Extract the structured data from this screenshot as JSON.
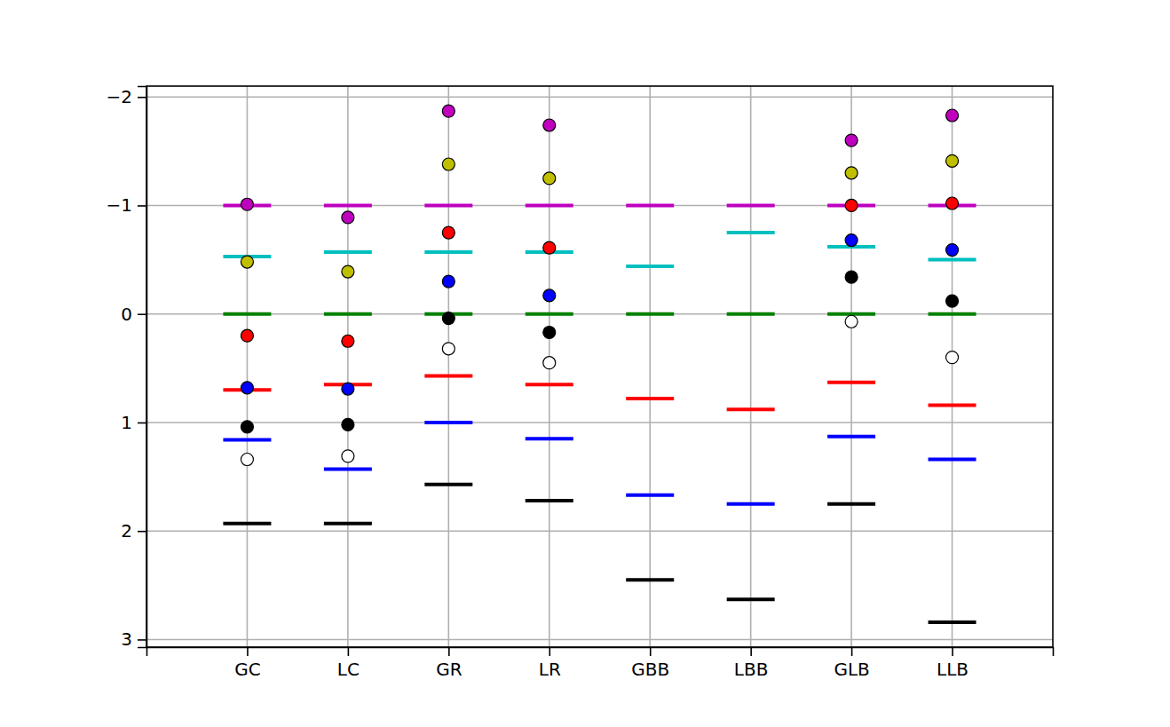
{
  "chart_data": {
    "type": "scatter",
    "categories": [
      "GC",
      "LC",
      "GR",
      "LR",
      "GBB",
      "LBB",
      "GLB",
      "LLB"
    ],
    "series": [
      {
        "color": "#bf00bf",
        "marker": "hline",
        "values": [
          -1,
          -1,
          -1,
          -1,
          -1,
          -1,
          -1,
          -1
        ]
      },
      {
        "color": "#00bfbf",
        "marker": "hline",
        "values": [
          -0.53,
          -0.57,
          -0.57,
          -0.57,
          -0.44,
          -0.75,
          -0.62,
          -0.5
        ]
      },
      {
        "color": "#008000",
        "marker": "hline",
        "values": [
          0,
          0,
          0,
          0,
          0,
          0,
          0,
          0
        ]
      },
      {
        "color": "#ff0000",
        "marker": "hline",
        "values": [
          0.7,
          0.65,
          0.57,
          0.65,
          0.78,
          0.88,
          0.63,
          0.84
        ]
      },
      {
        "color": "#0000ff",
        "marker": "hline",
        "values": [
          1.16,
          1.43,
          1.0,
          1.15,
          1.67,
          1.75,
          1.13,
          1.34
        ]
      },
      {
        "color": "#000000",
        "marker": "hline",
        "values": [
          1.93,
          1.93,
          1.57,
          1.72,
          2.45,
          2.63,
          1.75,
          2.84
        ]
      },
      {
        "color": "#bf00bf",
        "marker": "circle",
        "values": [
          -1.01,
          -0.89,
          -1.87,
          -1.74,
          null,
          null,
          -1.6,
          -1.83
        ]
      },
      {
        "color": "#bfbf00",
        "marker": "circle",
        "values": [
          -0.48,
          -0.39,
          -1.38,
          -1.25,
          null,
          null,
          -1.3,
          -1.41
        ]
      },
      {
        "color": "#ff0000",
        "marker": "circle",
        "values": [
          0.2,
          0.25,
          -0.75,
          -0.61,
          null,
          null,
          -1.0,
          -1.02
        ]
      },
      {
        "color": "#0000ff",
        "marker": "circle",
        "values": [
          0.68,
          0.69,
          -0.3,
          -0.17,
          null,
          null,
          -0.68,
          -0.59
        ]
      },
      {
        "color": "#000000",
        "marker": "circle",
        "values": [
          1.04,
          1.02,
          0.04,
          0.17,
          null,
          null,
          -0.34,
          -0.12
        ]
      },
      {
        "color": "#ffffff",
        "marker": "circle",
        "values": [
          1.34,
          1.31,
          0.32,
          0.45,
          null,
          null,
          0.07,
          0.4
        ]
      }
    ],
    "ylim": [
      3.07,
      -2.1
    ],
    "yticks": [
      {
        "value": -2,
        "label": "−2"
      },
      {
        "value": -1,
        "label": "−1"
      },
      0,
      1,
      2,
      3
    ],
    "grid": true
  }
}
